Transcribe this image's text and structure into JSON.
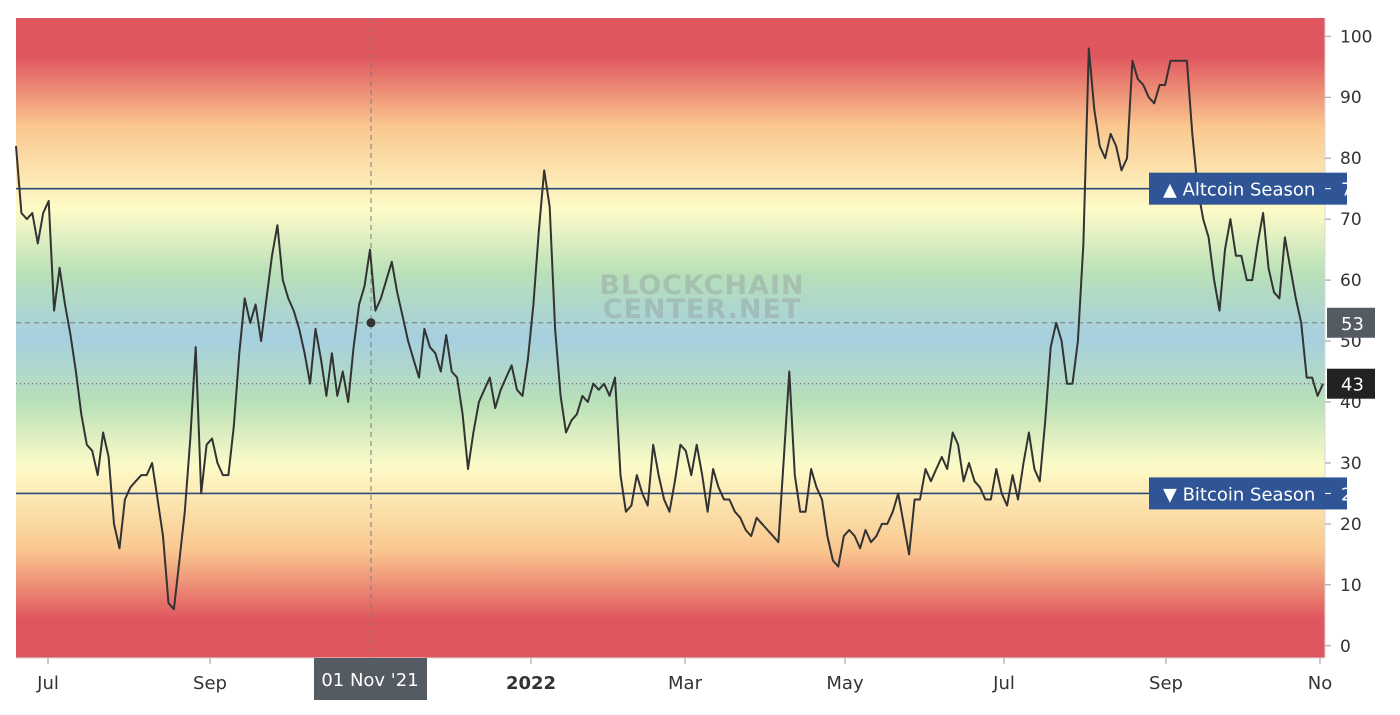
{
  "watermark": [
    "BLOCKCHAIN",
    "CENTER.NET"
  ],
  "colors": {
    "line": "#333333",
    "threshold_line": "#2c4a7a",
    "label_bg_blue": "#2f5597",
    "label_bg_dark": "#222222",
    "label_bg_gray": "#555b63",
    "band_red": "#e0565e",
    "band_orange": "#fac890",
    "band_yellow": "#fdfbc8",
    "band_green": "#b8e0b8",
    "band_blue": "#a6cfe0"
  },
  "crosshair": {
    "x_label": "01 Nov '21",
    "value": 53
  },
  "chart_data": {
    "type": "line",
    "title": "",
    "xlabel": "",
    "ylabel": "",
    "ylim": [
      -2,
      103
    ],
    "yticks": [
      0,
      10,
      20,
      30,
      40,
      50,
      60,
      70,
      80,
      90,
      100
    ],
    "xticks": [
      "Jul",
      "Sep",
      "2022",
      "Mar",
      "May",
      "Jul",
      "Sep",
      "No"
    ],
    "thresholds": [
      {
        "label": "▲ Altcoin Season",
        "value": 75
      },
      {
        "label": "▼ Bitcoin Season",
        "value": 25
      }
    ],
    "price_labels": [
      {
        "value": 53,
        "style": "gray"
      },
      {
        "value": 43,
        "style": "dark"
      }
    ],
    "grid": false,
    "series": [
      {
        "values": [
          82,
          71,
          70,
          71,
          66,
          71,
          73,
          55,
          62,
          56,
          51,
          45,
          38,
          33,
          32,
          28,
          35,
          31,
          20,
          16,
          24,
          26,
          27,
          28,
          28,
          30,
          24,
          18,
          7,
          6,
          14,
          22,
          34,
          49,
          25,
          33,
          34,
          30,
          28,
          28,
          36,
          48,
          57,
          53,
          56,
          50,
          57,
          64,
          69,
          60,
          57,
          55,
          52,
          48,
          43,
          52,
          47,
          41,
          48,
          41,
          45,
          40,
          49,
          56,
          59,
          65,
          55,
          57,
          60,
          63,
          58,
          54,
          50,
          47,
          44,
          52,
          49,
          48,
          45,
          51,
          45,
          44,
          38,
          29,
          35,
          40,
          42,
          44,
          39,
          42,
          44,
          46,
          42,
          41,
          47,
          56,
          68,
          78,
          72,
          52,
          41,
          35,
          37,
          38,
          41,
          40,
          43,
          42,
          43,
          41,
          44,
          28,
          22,
          23,
          28,
          25,
          23,
          33,
          28,
          24,
          22,
          27,
          33,
          32,
          28,
          33,
          28,
          22,
          29,
          26,
          24,
          24,
          22,
          21,
          19,
          18,
          21,
          20,
          19,
          18,
          17,
          31,
          45,
          28,
          22,
          22,
          29,
          26,
          24,
          18,
          14,
          13,
          18,
          19,
          18,
          16,
          19,
          17,
          18,
          20,
          20,
          22,
          25,
          20,
          15,
          24,
          24,
          29,
          27,
          29,
          31,
          29,
          35,
          33,
          27,
          30,
          27,
          26,
          24,
          24,
          29,
          25,
          23,
          28,
          24,
          30,
          35,
          29,
          27,
          37,
          49,
          53,
          50,
          43,
          43,
          50,
          66,
          98,
          88,
          82,
          80,
          84,
          82,
          78,
          80,
          96,
          93,
          92,
          90,
          89,
          92,
          92,
          96,
          96,
          96,
          96,
          84,
          75,
          70,
          67,
          60,
          55,
          65,
          70,
          64,
          64,
          60,
          60,
          66,
          71,
          62,
          58,
          57,
          67,
          62,
          57,
          53,
          44,
          44,
          41,
          43
        ]
      }
    ]
  }
}
